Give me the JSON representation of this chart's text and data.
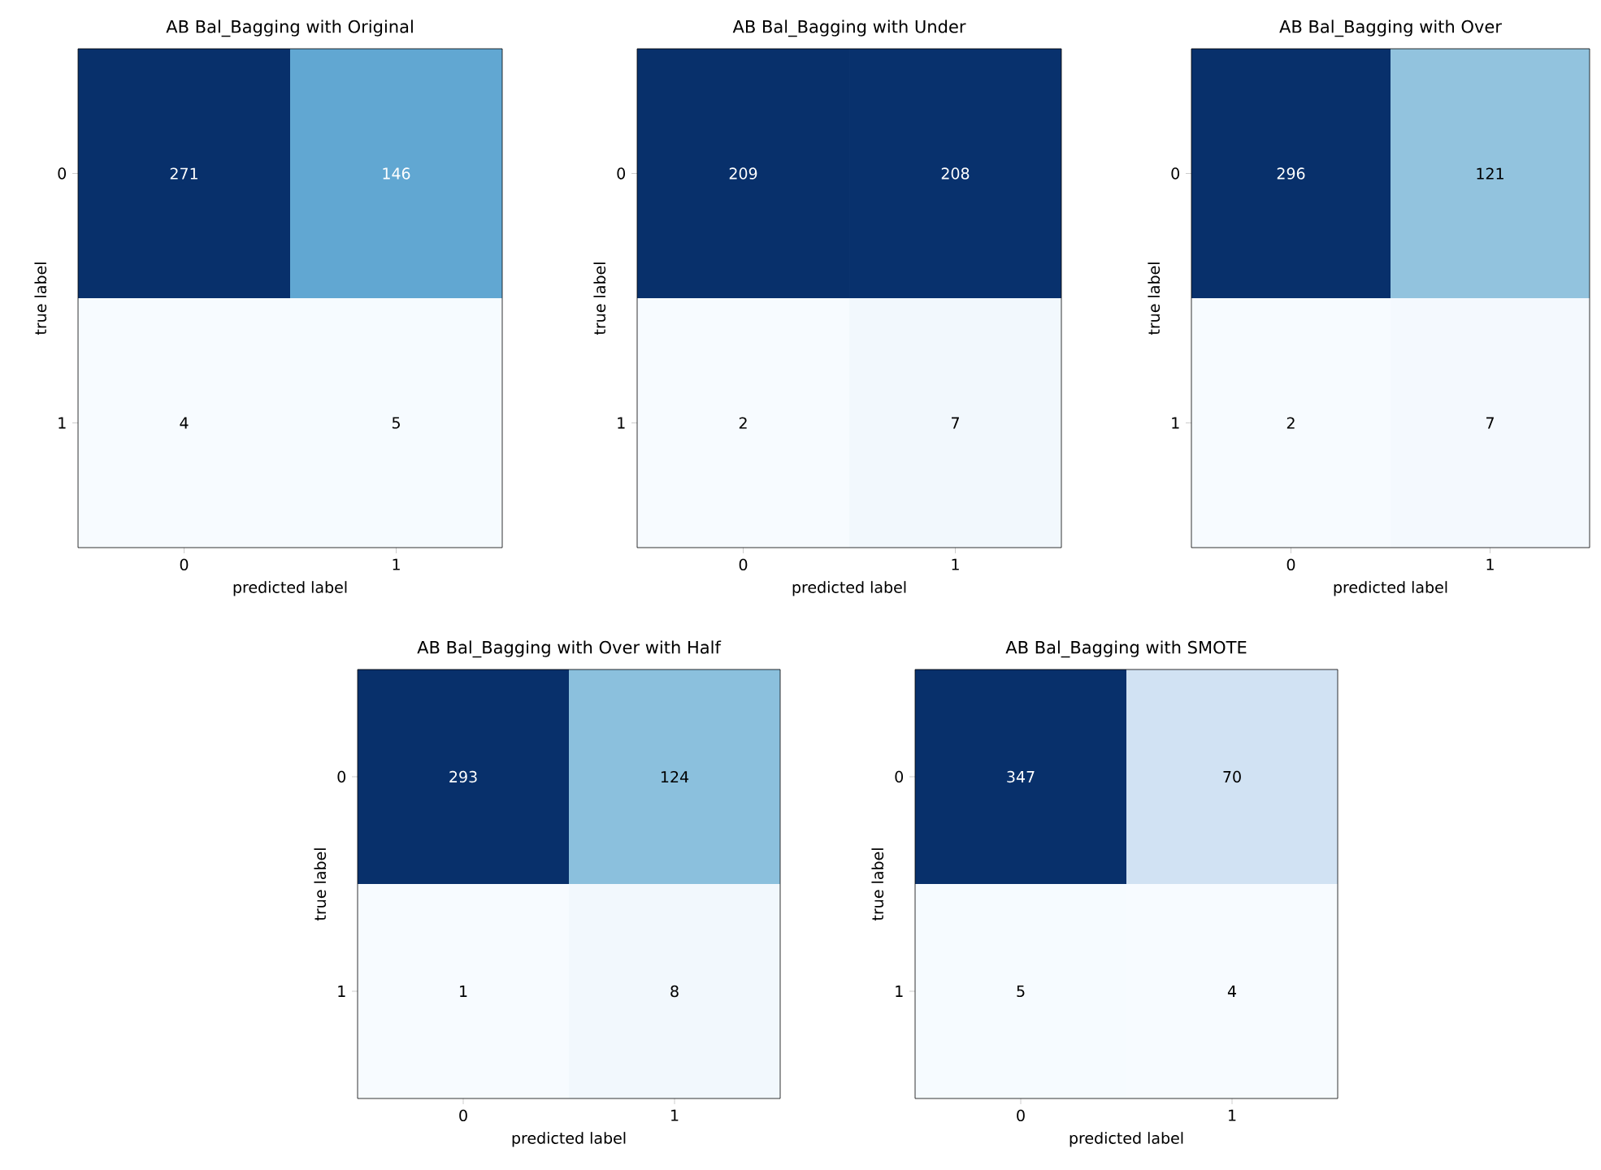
{
  "chart_data": [
    {
      "type": "heatmap",
      "title": "AB Bal_Bagging with Original",
      "xlabel": "predicted label",
      "ylabel": "true label",
      "categories": [
        "0",
        "1"
      ],
      "y_categories": [
        "0",
        "1"
      ],
      "cells": [
        [
          271,
          146
        ],
        [
          4,
          5
        ]
      ],
      "data_labels": true
    },
    {
      "type": "heatmap",
      "title": "AB Bal_Bagging with Under",
      "xlabel": "predicted label",
      "ylabel": "true label",
      "categories": [
        "0",
        "1"
      ],
      "y_categories": [
        "0",
        "1"
      ],
      "cells": [
        [
          209,
          208
        ],
        [
          2,
          7
        ]
      ],
      "data_labels": true
    },
    {
      "type": "heatmap",
      "title": "AB Bal_Bagging with Over",
      "xlabel": "predicted label",
      "ylabel": "true label",
      "categories": [
        "0",
        "1"
      ],
      "y_categories": [
        "0",
        "1"
      ],
      "cells": [
        [
          296,
          121
        ],
        [
          2,
          7
        ]
      ],
      "data_labels": true
    },
    {
      "type": "heatmap",
      "title": "AB Bal_Bagging with Over with Half",
      "xlabel": "predicted label",
      "ylabel": "true label",
      "categories": [
        "0",
        "1"
      ],
      "y_categories": [
        "0",
        "1"
      ],
      "cells": [
        [
          293,
          124
        ],
        [
          1,
          8
        ]
      ],
      "data_labels": true
    },
    {
      "type": "heatmap",
      "title": "AB Bal_Bagging with SMOTE",
      "xlabel": "predicted label",
      "ylabel": "true label",
      "categories": [
        "0",
        "1"
      ],
      "y_categories": [
        "0",
        "1"
      ],
      "cells": [
        [
          347,
          70
        ],
        [
          5,
          4
        ]
      ],
      "data_labels": true
    }
  ]
}
